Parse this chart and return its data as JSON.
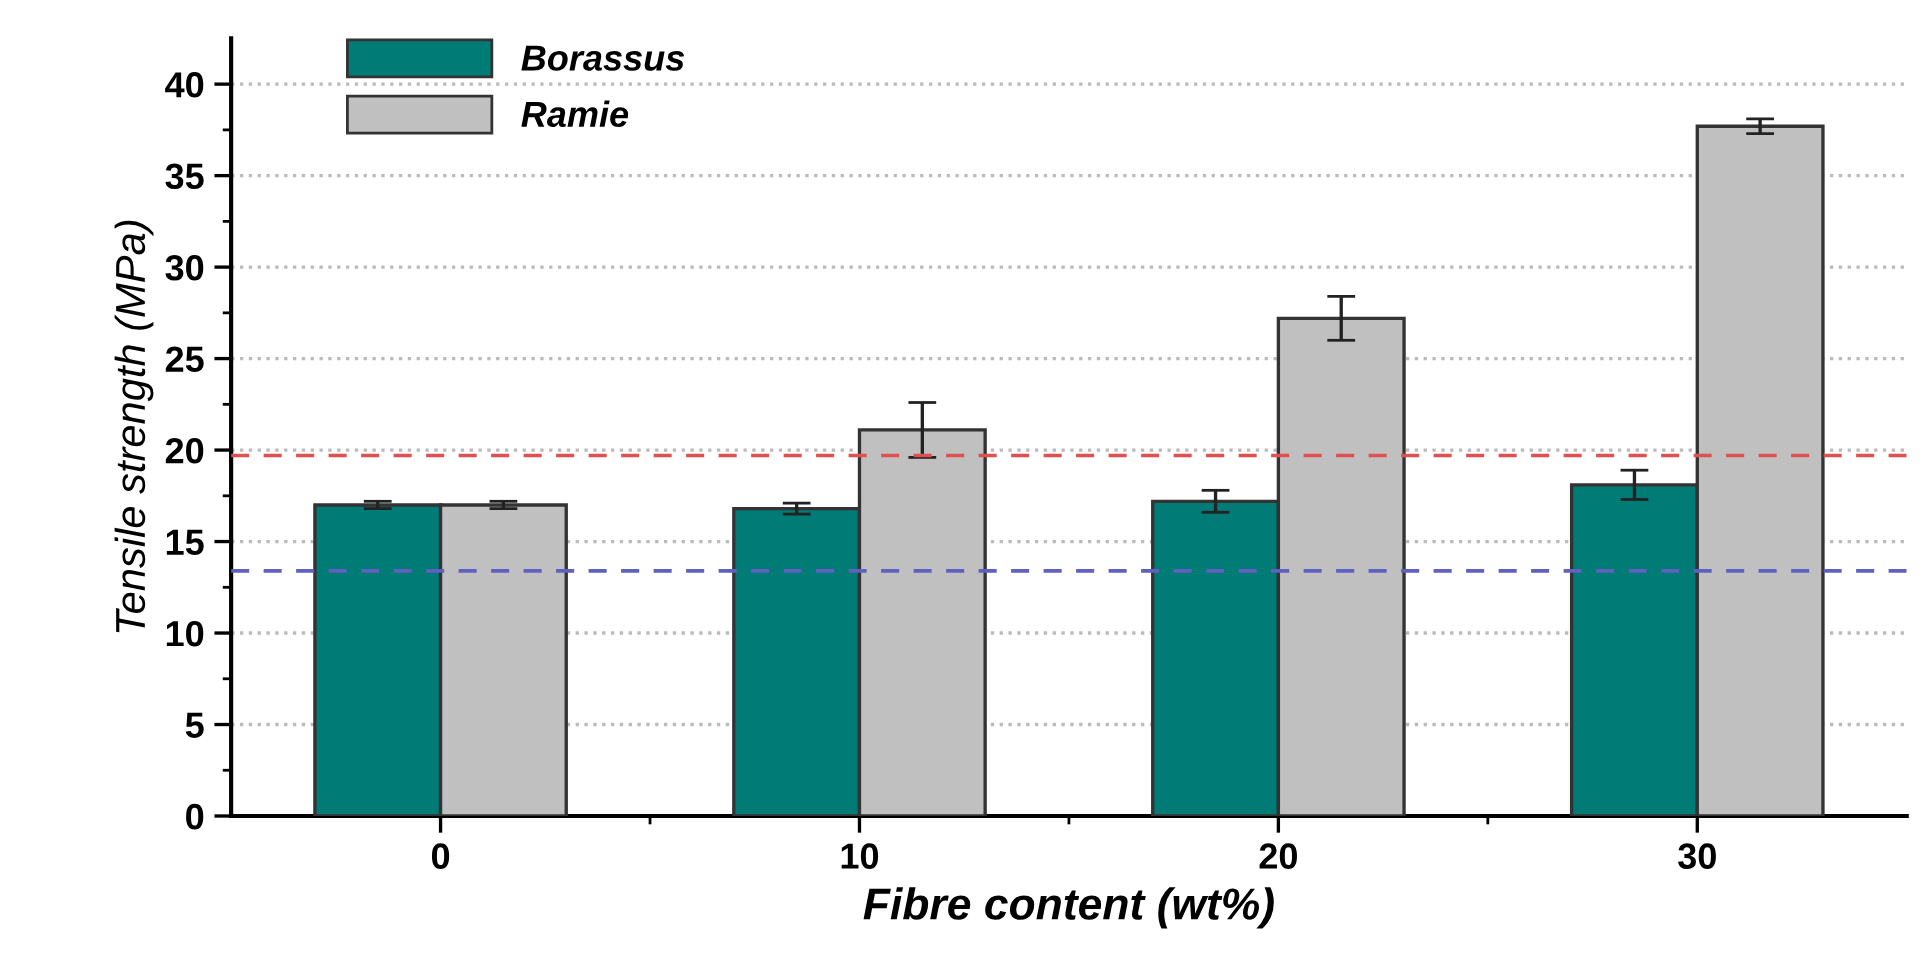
{
  "chart_data": {
    "type": "bar",
    "xlabel": "Fibre content (wt%)",
    "ylabel": "Tensile strength (MPa)",
    "categories": [
      "0",
      "10",
      "20",
      "30"
    ],
    "series": [
      {
        "name": "Borassus",
        "color": "#007b76",
        "values": [
          17.0,
          16.8,
          17.2,
          18.1
        ],
        "errors": [
          0.2,
          0.3,
          0.6,
          0.8
        ]
      },
      {
        "name": "Ramie",
        "color": "#c0c0c0",
        "values": [
          17.0,
          21.1,
          27.2,
          37.7
        ],
        "errors": [
          0.2,
          1.5,
          1.2,
          0.4
        ]
      }
    ],
    "ylim": [
      0,
      42.5
    ],
    "yticks": [
      0,
      5,
      10,
      15,
      20,
      25,
      30,
      35,
      40
    ],
    "ref_lines": [
      {
        "axis": "y",
        "value": 19.7,
        "color": "#e05050",
        "line_style": "dashed"
      },
      {
        "axis": "y",
        "value": 13.4,
        "color": "#6060c0",
        "line_style": "dashed"
      }
    ],
    "grid": "y",
    "legend": "top left"
  }
}
